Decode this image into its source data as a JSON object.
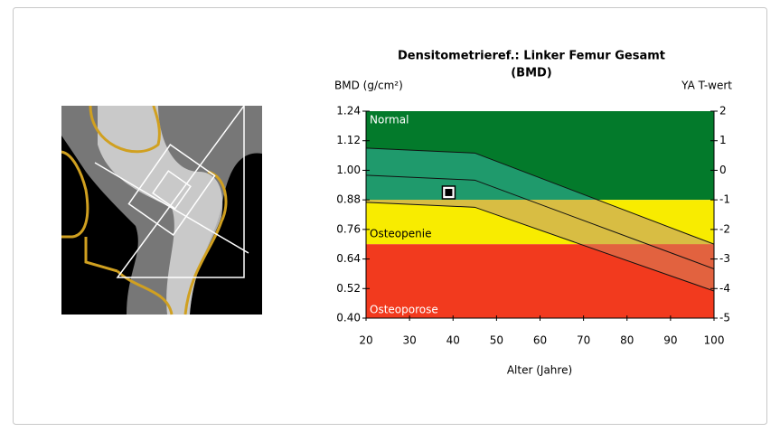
{
  "chart_data": {
    "type": "reference",
    "title": [
      "Densitometrieref.: Linker Femur Gesamt",
      "(BMD)"
    ],
    "y_label": "BMD (g/cm²)",
    "y2_label": "YA T-wert",
    "x_label": "Alter (Jahre)",
    "xlim": [
      20,
      100
    ],
    "xticks": [
      20,
      30,
      40,
      50,
      60,
      70,
      80,
      90,
      100
    ],
    "ylim": [
      0.4,
      1.24
    ],
    "yticks": [
      {
        "value": 1.24,
        "label": "1.24"
      },
      {
        "value": 1.12,
        "label": "1.12"
      },
      {
        "value": 1.0,
        "label": "1.00"
      },
      {
        "value": 0.88,
        "label": "0.88"
      },
      {
        "value": 0.76,
        "label": "0.76"
      },
      {
        "value": 0.64,
        "label": "0.64"
      },
      {
        "value": 0.52,
        "label": "0.52"
      },
      {
        "value": 0.4,
        "label": "0.40"
      }
    ],
    "y2lim": [
      -5,
      2
    ],
    "y2ticks": [
      2,
      1,
      0,
      -1,
      -2,
      -3,
      -4,
      -5
    ],
    "zones": [
      {
        "name": "Normal",
        "from": 0.88,
        "to": 1.24,
        "color": "#037a2b",
        "band_color": "#1f9a6c",
        "label_color": "#ffffff"
      },
      {
        "name": "Osteopenie",
        "from": 0.7,
        "to": 0.88,
        "color": "#f8ec00",
        "band_color": "#d8bd43",
        "label_color": "#000000"
      },
      {
        "name": "Osteoporose",
        "from": 0.4,
        "to": 0.7,
        "color": "#f23a1e",
        "band_color": "#e2623f",
        "label_color": "#ffffff"
      }
    ],
    "series": [
      {
        "x": [
          20,
          45,
          100
        ],
        "values": [
          1.09,
          1.07,
          0.7
        ],
        "color": "#111111"
      },
      {
        "x": [
          20,
          45,
          100
        ],
        "values": [
          0.98,
          0.96,
          0.6
        ],
        "color": "#111111"
      },
      {
        "x": [
          20,
          45,
          100
        ],
        "values": [
          0.87,
          0.85,
          0.51
        ],
        "color": "#111111"
      }
    ],
    "patient": {
      "x": 39,
      "value": 0.91
    }
  }
}
